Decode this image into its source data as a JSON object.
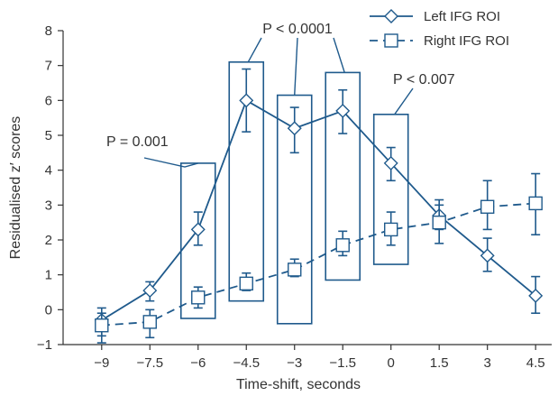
{
  "chart_data": {
    "type": "line",
    "title": "",
    "xlabel": "Time-shift, seconds",
    "ylabel": "Residualised z′ scores",
    "xlim": [
      -10.2,
      5.0
    ],
    "ylim": [
      -1,
      8
    ],
    "x_ticks": [
      -9,
      -7.5,
      -6,
      -4.5,
      -3,
      -1.5,
      0,
      1.5,
      3,
      4.5
    ],
    "x_tick_labels": [
      "−9",
      "−7.5",
      "−6",
      "−4.5",
      "−3",
      "−1.5",
      "0",
      "1.5",
      "3",
      "4.5"
    ],
    "y_ticks": [
      -1,
      0,
      1,
      2,
      3,
      4,
      5,
      6,
      7,
      8
    ],
    "y_tick_labels": [
      "−1",
      "0",
      "1",
      "2",
      "3",
      "4",
      "5",
      "6",
      "7",
      "8"
    ],
    "grid": false,
    "legend_position": "top-right",
    "colors": {
      "series": "#1f5a8c",
      "text": "#333333",
      "axis": "#333333"
    },
    "series": [
      {
        "name": "Left IFG ROI",
        "marker": "diamond",
        "line_style": "solid",
        "x": [
          -9,
          -7.5,
          -6,
          -4.5,
          -3,
          -1.5,
          0,
          1.5,
          3,
          4.5
        ],
        "y": [
          -0.3,
          0.55,
          2.3,
          6.0,
          5.2,
          5.7,
          4.2,
          2.7,
          1.55,
          0.4
        ],
        "err_low": [
          -0.75,
          0.25,
          1.85,
          5.1,
          4.5,
          5.05,
          3.7,
          2.3,
          1.1,
          -0.1
        ],
        "err_high": [
          0.05,
          0.8,
          2.8,
          6.9,
          5.8,
          6.3,
          4.65,
          3.15,
          2.05,
          0.95
        ]
      },
      {
        "name": "Right IFG ROI",
        "marker": "square",
        "line_style": "dashed",
        "x": [
          -9,
          -7.5,
          -6,
          -4.5,
          -3,
          -1.5,
          0,
          1.5,
          3,
          4.5
        ],
        "y": [
          -0.45,
          -0.35,
          0.35,
          0.75,
          1.15,
          1.85,
          2.3,
          2.5,
          2.95,
          3.05
        ],
        "err_low": [
          -0.95,
          -0.8,
          0.05,
          0.55,
          0.95,
          1.55,
          1.85,
          1.9,
          2.3,
          2.15
        ],
        "err_high": [
          -0.1,
          0.0,
          0.65,
          1.05,
          1.45,
          2.25,
          2.8,
          3.0,
          3.7,
          3.9
        ]
      }
    ],
    "highlight_boxes": [
      {
        "x": -6,
        "y_low": -0.25,
        "y_high": 4.2
      },
      {
        "x": -4.5,
        "y_low": 0.25,
        "y_high": 7.1
      },
      {
        "x": -3,
        "y_low": -0.4,
        "y_high": 6.15
      },
      {
        "x": -1.5,
        "y_low": 0.85,
        "y_high": 6.8
      },
      {
        "x": 0,
        "y_low": 1.3,
        "y_high": 5.6
      }
    ],
    "annotations": [
      {
        "text": "P = 0.001",
        "targets": [
          -6
        ]
      },
      {
        "text": "P < 0.0001",
        "targets": [
          -4.5,
          -3,
          -1.5
        ]
      },
      {
        "text": "P < 0.007",
        "targets": [
          0
        ]
      }
    ]
  }
}
